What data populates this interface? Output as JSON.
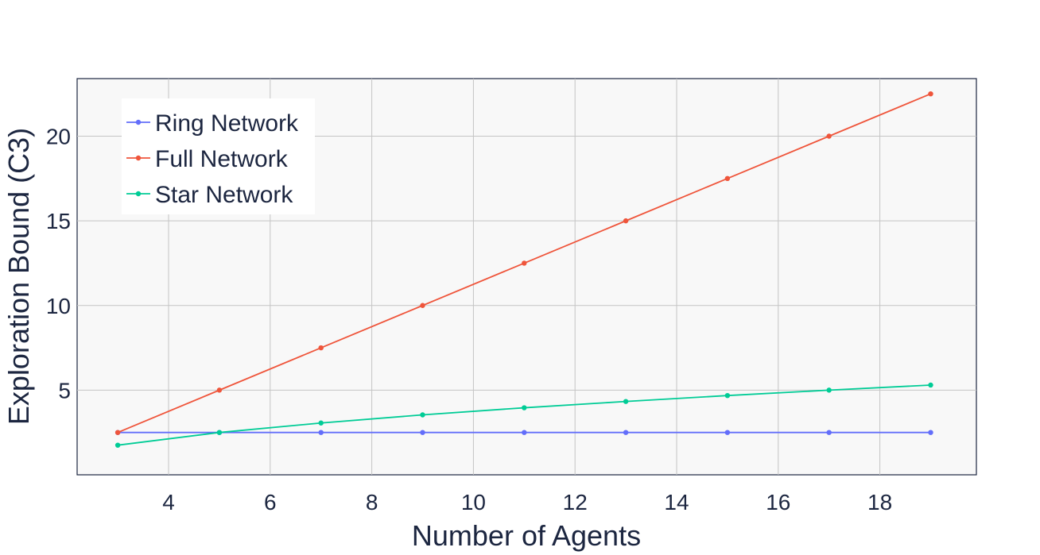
{
  "chart_data": {
    "type": "line",
    "xlabel": "Number of Agents",
    "ylabel": "Exploration Bound (C3)",
    "xlim": [
      2.2,
      19.9
    ],
    "ylim": [
      0.0,
      23.4
    ],
    "xticks": [
      4,
      6,
      8,
      10,
      12,
      14,
      16,
      18
    ],
    "yticks": [
      5,
      10,
      15,
      20
    ],
    "grid": true,
    "legend_position": "top-left",
    "plot_background": "#f8f8f8",
    "x": [
      3,
      5,
      7,
      9,
      11,
      13,
      15,
      17,
      19
    ],
    "series": [
      {
        "name": "Ring Network",
        "color": "#636efa",
        "values": [
          2.5,
          2.5,
          2.5,
          2.5,
          2.5,
          2.5,
          2.5,
          2.5,
          2.5
        ]
      },
      {
        "name": "Full Network",
        "color": "#ef553b",
        "values": [
          2.5,
          5.0,
          7.5,
          10.0,
          12.5,
          15.0,
          17.5,
          20.0,
          22.5
        ]
      },
      {
        "name": "Star Network",
        "color": "#00cc96",
        "values": [
          1.75,
          2.5,
          3.06,
          3.54,
          3.96,
          4.33,
          4.68,
          5.0,
          5.3
        ]
      }
    ]
  }
}
